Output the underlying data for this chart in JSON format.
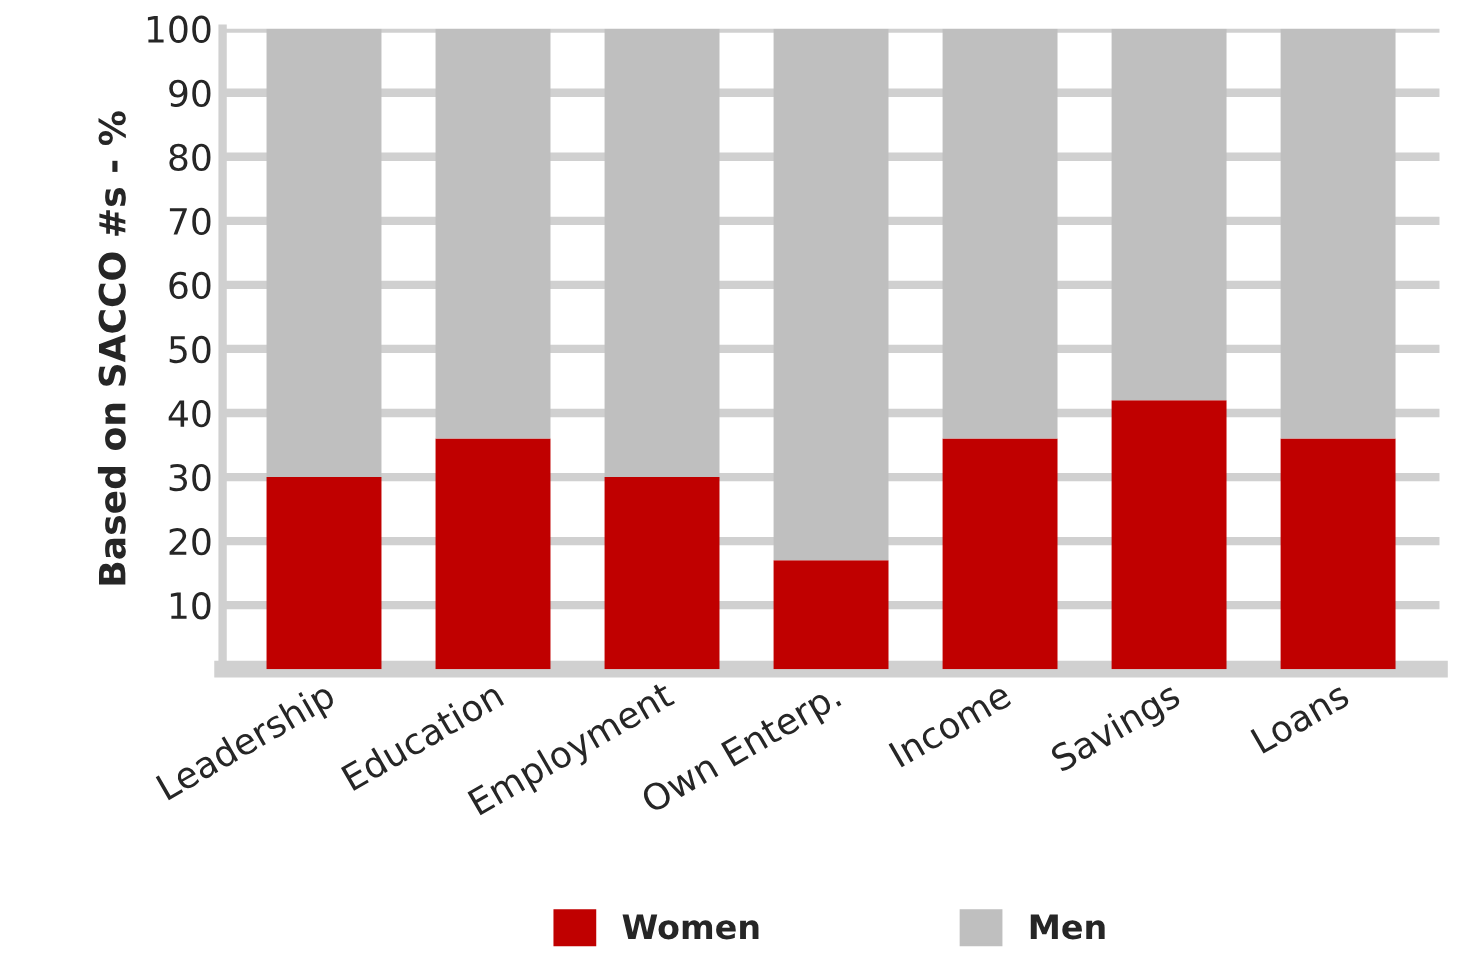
{
  "chart_data": {
    "type": "bar",
    "stacked": true,
    "ylabel": "Based on SACCO #s - %",
    "categories": [
      "Leadership",
      "Education",
      "Employment",
      "Own Enterp.",
      "Income",
      "Savings",
      "Loans"
    ],
    "series": [
      {
        "name": "Women",
        "color": "#c00000",
        "values": [
          30,
          36,
          30,
          17,
          36,
          42,
          36
        ]
      },
      {
        "name": "Men",
        "color": "#bfbfbf",
        "values": [
          70,
          64,
          70,
          83,
          64,
          58,
          64
        ]
      }
    ],
    "ylim": [
      0,
      100
    ],
    "yticks": [
      10,
      20,
      30,
      40,
      50,
      60,
      70,
      80,
      90,
      100
    ],
    "grid": "y",
    "legend": "bottom"
  }
}
